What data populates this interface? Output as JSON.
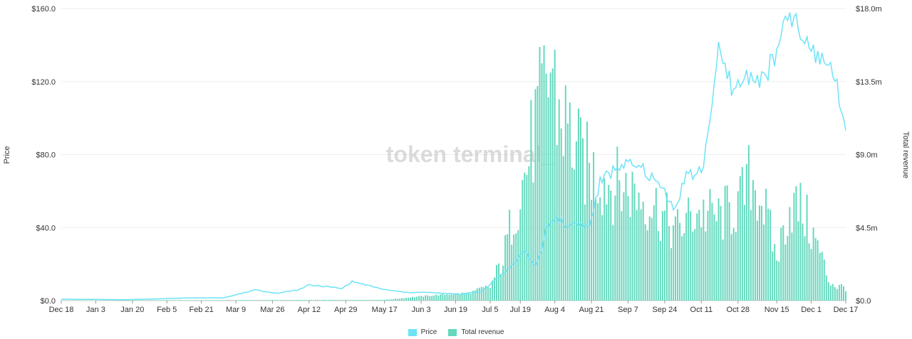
{
  "chart_data": {
    "type": "bar",
    "watermark": "token terminal_",
    "y_left_label": "Price",
    "y_right_label": "Total revenue",
    "y_left_ticks": [
      "$0.0",
      "$40.0",
      "$80.0",
      "$120.0",
      "$160.0"
    ],
    "y_right_ticks": [
      "$0.0",
      "$4.5m",
      "$9.0m",
      "$13.5m",
      "$18.0m"
    ],
    "y_left_range": [
      0,
      160
    ],
    "y_right_range": [
      0,
      18000000
    ],
    "x_tick_labels": [
      "Dec 18",
      "Jan 3",
      "Jan 20",
      "Feb 5",
      "Feb 21",
      "Mar 9",
      "Mar 26",
      "Apr 12",
      "Apr 29",
      "May 17",
      "Jun 3",
      "Jun 19",
      "Jul 5",
      "Jul 19",
      "Aug 4",
      "Aug 21",
      "Sep 7",
      "Sep 24",
      "Oct 11",
      "Oct 28",
      "Nov 15",
      "Dec 1",
      "Dec 17"
    ],
    "x_tick_day_index": [
      0,
      16,
      33,
      49,
      65,
      81,
      98,
      115,
      132,
      150,
      167,
      183,
      199,
      213,
      229,
      246,
      263,
      280,
      297,
      314,
      332,
      348,
      364
    ],
    "n_days": 365,
    "colors": {
      "price": "#6ee3f7",
      "revenue": "#63d8bd"
    },
    "revenue_millions_anchors": [
      [
        0,
        0.02
      ],
      [
        150,
        0.05
      ],
      [
        170,
        0.3
      ],
      [
        190,
        0.5
      ],
      [
        199,
        1.0
      ],
      [
        205,
        3.0
      ],
      [
        210,
        6.5
      ],
      [
        215,
        9.0
      ],
      [
        220,
        12.5
      ],
      [
        225,
        15.5
      ],
      [
        228,
        17.0
      ],
      [
        230,
        14.0
      ],
      [
        235,
        12.5
      ],
      [
        240,
        10.5
      ],
      [
        245,
        9.5
      ],
      [
        255,
        8.5
      ],
      [
        265,
        8.0
      ],
      [
        275,
        7.0
      ],
      [
        285,
        5.0
      ],
      [
        295,
        6.5
      ],
      [
        305,
        6.0
      ],
      [
        315,
        7.0
      ],
      [
        320,
        9.0
      ],
      [
        325,
        7.5
      ],
      [
        332,
        3.0
      ],
      [
        338,
        7.0
      ],
      [
        344,
        6.5
      ],
      [
        352,
        3.5
      ],
      [
        356,
        1.5
      ],
      [
        360,
        1.0
      ],
      [
        364,
        1.0
      ]
    ],
    "series": [
      {
        "name": "Price",
        "type": "line",
        "axis": "left",
        "anchors": [
          [
            0,
            0.8
          ],
          [
            30,
            0.5
          ],
          [
            60,
            1.5
          ],
          [
            75,
            1.5
          ],
          [
            90,
            5.8
          ],
          [
            100,
            4.0
          ],
          [
            110,
            6.0
          ],
          [
            115,
            8.5
          ],
          [
            125,
            7.5
          ],
          [
            130,
            6.5
          ],
          [
            135,
            10.5
          ],
          [
            150,
            6.0
          ],
          [
            160,
            4.5
          ],
          [
            170,
            4.5
          ],
          [
            185,
            3.5
          ],
          [
            195,
            5.0
          ],
          [
            205,
            15.0
          ],
          [
            210,
            20.0
          ],
          [
            215,
            28.0
          ],
          [
            220,
            18.0
          ],
          [
            223,
            28.0
          ],
          [
            225,
            40.0
          ],
          [
            230,
            46.0
          ],
          [
            235,
            40.0
          ],
          [
            238,
            43.0
          ],
          [
            245,
            40.0
          ],
          [
            250,
            65.0
          ],
          [
            260,
            75.0
          ],
          [
            270,
            72.0
          ],
          [
            280,
            60.0
          ],
          [
            285,
            50.0
          ],
          [
            290,
            70.0
          ],
          [
            295,
            68.0
          ],
          [
            298,
            75.0
          ],
          [
            302,
            110.0
          ],
          [
            305,
            135.0
          ],
          [
            312,
            115.0
          ],
          [
            320,
            125.0
          ],
          [
            325,
            120.0
          ],
          [
            332,
            135.0
          ],
          [
            338,
            158.0
          ],
          [
            345,
            140.0
          ],
          [
            350,
            135.0
          ],
          [
            358,
            128.0
          ],
          [
            362,
            103.0
          ],
          [
            364,
            98.0
          ]
        ]
      },
      {
        "name": "Total revenue",
        "type": "bar",
        "axis": "right"
      }
    ]
  }
}
